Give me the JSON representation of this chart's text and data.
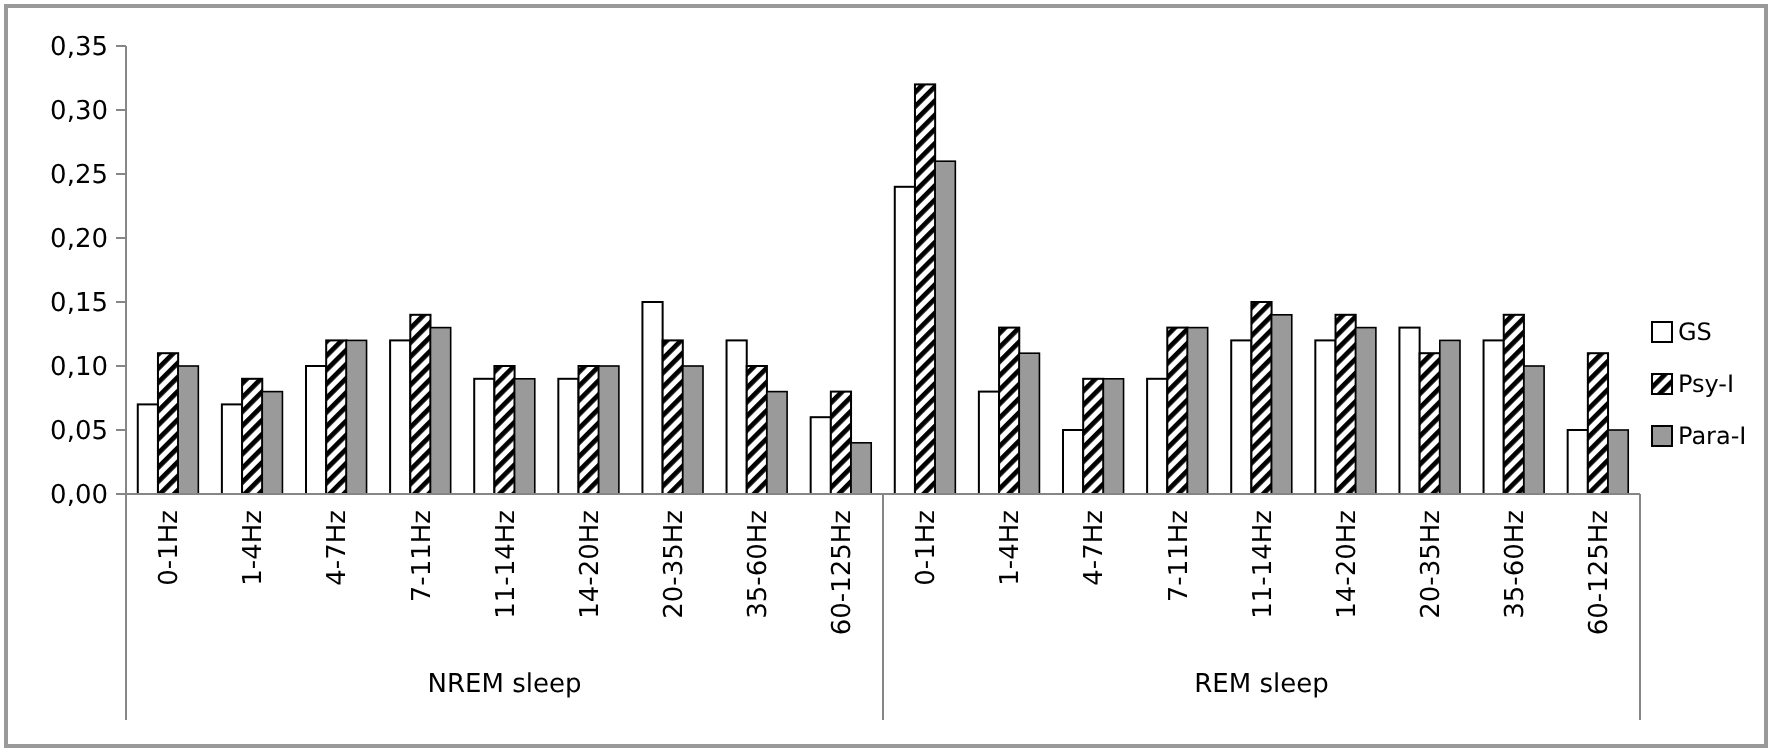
{
  "chart_data": {
    "type": "bar",
    "categories": [
      "0-1Hz",
      "1-4Hz",
      "4-7Hz",
      "7-11Hz",
      "11-14Hz",
      "14-20Hz",
      "20-35Hz",
      "35-60Hz",
      "60-125Hz",
      "0-1Hz",
      "1-4Hz",
      "4-7Hz",
      "7-11Hz",
      "11-14Hz",
      "14-20Hz",
      "20-35Hz",
      "35-60Hz",
      "60-125Hz"
    ],
    "series": [
      {
        "name": "GS",
        "color": "#ffffff",
        "values": [
          0.07,
          0.07,
          0.1,
          0.12,
          0.09,
          0.09,
          0.15,
          0.12,
          0.06,
          0.24,
          0.08,
          0.05,
          0.09,
          0.12,
          0.12,
          0.13,
          0.12,
          0.05
        ]
      },
      {
        "name": "Psy-I",
        "color": "#000000",
        "values": [
          0.11,
          0.09,
          0.12,
          0.14,
          0.1,
          0.1,
          0.12,
          0.1,
          0.08,
          0.32,
          0.13,
          0.09,
          0.13,
          0.15,
          0.14,
          0.11,
          0.14,
          0.11
        ]
      },
      {
        "name": "Para-I",
        "color": "#9a9a9a",
        "values": [
          0.1,
          0.08,
          0.12,
          0.13,
          0.09,
          0.1,
          0.1,
          0.08,
          0.04,
          0.26,
          0.11,
          0.09,
          0.13,
          0.14,
          0.13,
          0.12,
          0.1,
          0.05
        ]
      }
    ],
    "ylim": [
      0,
      0.35
    ],
    "yticks": [
      {
        "value": 0,
        "label": "0,00"
      },
      {
        "value": 0.05,
        "label": "0,05"
      },
      {
        "value": 0.1,
        "label": "0,10"
      },
      {
        "value": 0.15,
        "label": "0,15"
      },
      {
        "value": 0.2,
        "label": "0,20"
      },
      {
        "value": 0.25,
        "label": "0,25"
      },
      {
        "value": 0.3,
        "label": "0,30"
      },
      {
        "value": 0.35,
        "label": "0,35"
      }
    ],
    "annotations": [
      "NREM sleep",
      "REM sleep"
    ],
    "legend": "right",
    "grid": false
  }
}
